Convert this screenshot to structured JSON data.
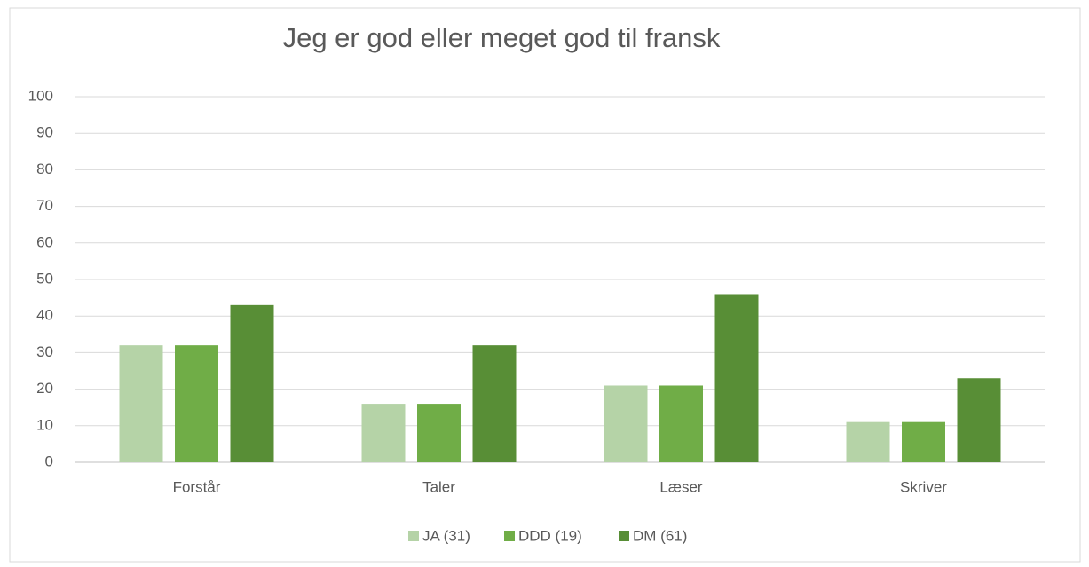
{
  "chart_data": {
    "type": "bar",
    "title": "Jeg er god eller meget god til fransk",
    "categories": [
      "Forstår",
      "Taler",
      "Læser",
      "Skriver"
    ],
    "series": [
      {
        "name": "JA (31)",
        "color": "#b5d3a7",
        "values": [
          32,
          16,
          21,
          11
        ]
      },
      {
        "name": "DDD (19)",
        "color": "#70ad47",
        "values": [
          32,
          16,
          21,
          11
        ]
      },
      {
        "name": "DM (61)",
        "color": "#588e36",
        "values": [
          43,
          32,
          46,
          23
        ]
      }
    ],
    "ylim": [
      0,
      100
    ],
    "yticks": [
      0,
      10,
      20,
      30,
      40,
      50,
      60,
      70,
      80,
      90,
      100
    ],
    "grid": true,
    "legend": "bottom"
  }
}
